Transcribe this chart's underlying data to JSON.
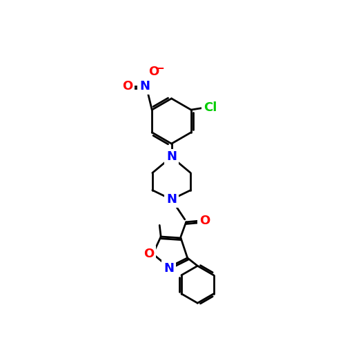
{
  "background_color": "#ffffff",
  "bond_color": "#000000",
  "atom_colors": {
    "N": "#0000ff",
    "O": "#ff0000",
    "Cl": "#00cc00",
    "C": "#000000"
  },
  "line_width": 2.0,
  "font_size": 13
}
